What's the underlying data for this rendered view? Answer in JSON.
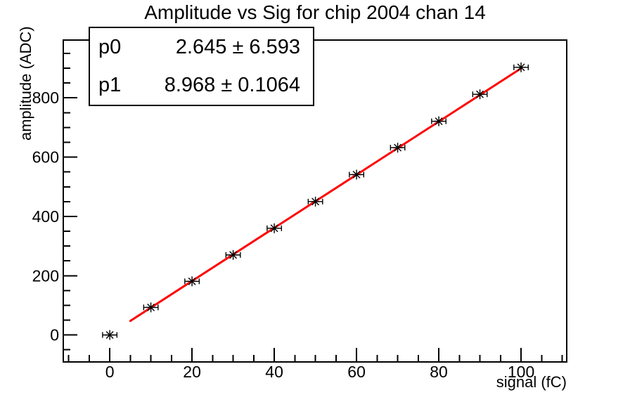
{
  "page": {
    "background": "#ffffff"
  },
  "chart_data": {
    "type": "scatter",
    "title": "Amplitude vs Sig for chip 2004 chan 14",
    "xlabel": "signal (fC)",
    "ylabel": "amplitude (ADC)",
    "x": [
      0,
      10,
      20,
      30,
      40,
      50,
      60,
      70,
      80,
      90,
      100
    ],
    "y": [
      0,
      93,
      181,
      270,
      360,
      450,
      541,
      632,
      721,
      812,
      903
    ],
    "x_err": 1.75,
    "xlim": [
      -11.3,
      111.1
    ],
    "ylim": [
      -91,
      995
    ],
    "x_major_ticks": [
      0,
      20,
      40,
      60,
      80,
      100
    ],
    "y_major_ticks": [
      0,
      200,
      400,
      600,
      800
    ],
    "x_minor_step": 5,
    "y_minor_step": 50,
    "grid": false,
    "legend_position": "none",
    "marker": {
      "shape": "star8-with-x-error-bars",
      "color": "#000000",
      "size": 7
    },
    "fit": {
      "p0": 2.645,
      "p0_err": 6.593,
      "p1": 8.968,
      "p1_err": 0.1064,
      "x_range": [
        5,
        100
      ],
      "color": "#ff0000",
      "width": 3
    }
  },
  "stats_box": {
    "rows": [
      {
        "label": "p0",
        "value": "2.645 ± 6.593"
      },
      {
        "label": "p1",
        "value": "8.968 ± 0.1064"
      }
    ]
  },
  "colors": {
    "fit_line": "#ff0000",
    "axis": "#000000",
    "marker": "#000000",
    "background": "#ffffff"
  }
}
